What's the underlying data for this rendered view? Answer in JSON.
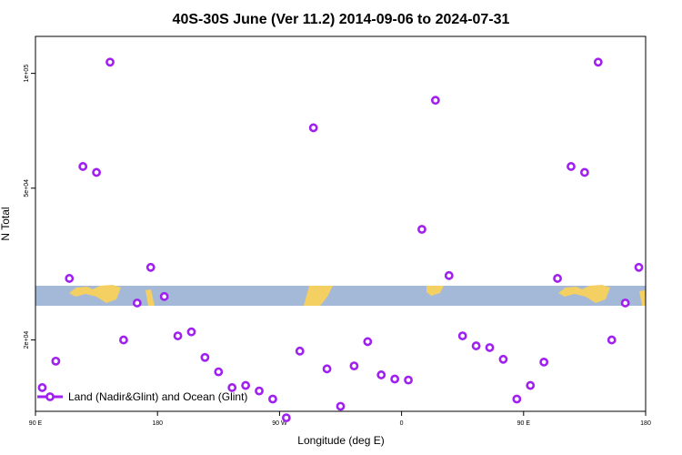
{
  "chart_data": {
    "type": "scatter",
    "title": "40S-30S June (Ver 11.2)   2014-09-06 to 2024-07-31",
    "xlabel": "Longitude (deg E)",
    "ylabel": "N Total",
    "y_scale": "log",
    "xlim": [
      90,
      540
    ],
    "ylim": [
      13000,
      125000
    ],
    "x_ticks": [
      {
        "value": 90,
        "label": "90 E"
      },
      {
        "value": 180,
        "label": "180"
      },
      {
        "value": 270,
        "label": "90 W"
      },
      {
        "value": 360,
        "label": "0"
      },
      {
        "value": 450,
        "label": "90 E"
      },
      {
        "value": 540,
        "label": "180"
      }
    ],
    "y_ticks": [
      {
        "value": 20000,
        "label": "2e+04"
      },
      {
        "value": 50000,
        "label": "5e+04"
      },
      {
        "value": 100000,
        "label": "1e+05"
      }
    ],
    "legend_position": "bottom-left",
    "grid": false,
    "series": [
      {
        "name": "Land (Nadir&Glint) and Ocean (Glint)",
        "color": "#a020f0",
        "x": [
          95,
          105,
          115,
          125,
          135,
          145,
          155,
          165,
          175,
          185,
          195,
          205,
          215,
          225,
          235,
          245,
          255,
          265,
          275,
          285,
          295,
          305,
          315,
          325,
          335,
          345,
          355,
          365,
          375,
          385,
          395,
          405,
          415,
          425,
          435,
          445,
          455,
          465,
          475,
          485,
          495,
          505,
          515,
          525,
          535
        ],
        "y": [
          15000,
          17600,
          29000,
          57000,
          55000,
          107000,
          20000,
          25000,
          31000,
          26000,
          20500,
          21000,
          18000,
          16500,
          15000,
          15200,
          14700,
          14000,
          12500,
          18700,
          72000,
          16800,
          13400,
          17100,
          19800,
          16200,
          15800,
          15700,
          39000,
          85000,
          29500,
          20500,
          19300,
          19100,
          17800,
          14000,
          15200,
          17500,
          29000,
          57000,
          55000,
          107000,
          20000,
          25000,
          31000
        ]
      }
    ]
  }
}
